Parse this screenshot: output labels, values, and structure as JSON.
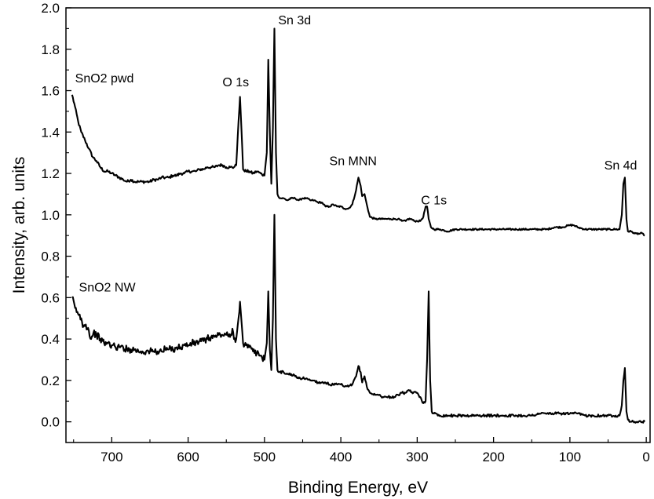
{
  "chart_data": {
    "type": "line",
    "title": "",
    "xlabel": "Binding Energy, eV",
    "ylabel": "Intensity, arb. units",
    "xlim": [
      760,
      -5
    ],
    "x_reversed": true,
    "ylim": [
      -0.1,
      2.0
    ],
    "xticks": [
      700,
      600,
      500,
      400,
      300,
      200,
      100,
      0
    ],
    "xtick_labels": [
      "700",
      "600",
      "500",
      "400",
      "300",
      "200",
      "100",
      "0"
    ],
    "yticks": [
      0.0,
      0.2,
      0.4,
      0.6,
      0.8,
      1.0,
      1.2,
      1.4,
      1.6,
      1.8,
      2.0
    ],
    "ytick_labels": [
      "0.0",
      "0.2",
      "0.4",
      "0.6",
      "0.8",
      "1.0",
      "1.2",
      "1.4",
      "1.6",
      "1.8",
      "2.0"
    ],
    "grid": false,
    "line_color": "#000000",
    "series": [
      {
        "name": "SnO2 pwd",
        "points": [
          [
            752,
            1.58
          ],
          [
            748,
            1.52
          ],
          [
            744,
            1.45
          ],
          [
            740,
            1.4
          ],
          [
            735,
            1.36
          ],
          [
            730,
            1.32
          ],
          [
            725,
            1.28
          ],
          [
            720,
            1.26
          ],
          [
            715,
            1.23
          ],
          [
            710,
            1.21
          ],
          [
            705,
            1.21
          ],
          [
            700,
            1.2
          ],
          [
            695,
            1.19
          ],
          [
            690,
            1.18
          ],
          [
            685,
            1.17
          ],
          [
            680,
            1.16
          ],
          [
            675,
            1.17
          ],
          [
            670,
            1.16
          ],
          [
            665,
            1.16
          ],
          [
            660,
            1.16
          ],
          [
            655,
            1.16
          ],
          [
            650,
            1.16
          ],
          [
            645,
            1.17
          ],
          [
            640,
            1.17
          ],
          [
            635,
            1.18
          ],
          [
            630,
            1.18
          ],
          [
            625,
            1.18
          ],
          [
            620,
            1.19
          ],
          [
            615,
            1.19
          ],
          [
            610,
            1.2
          ],
          [
            605,
            1.2
          ],
          [
            600,
            1.21
          ],
          [
            595,
            1.21
          ],
          [
            590,
            1.21
          ],
          [
            585,
            1.22
          ],
          [
            580,
            1.22
          ],
          [
            575,
            1.23
          ],
          [
            570,
            1.23
          ],
          [
            565,
            1.23
          ],
          [
            560,
            1.24
          ],
          [
            555,
            1.24
          ],
          [
            550,
            1.23
          ],
          [
            545,
            1.23
          ],
          [
            540,
            1.23
          ],
          [
            537,
            1.24
          ],
          [
            534,
            1.45
          ],
          [
            532,
            1.57
          ],
          [
            530,
            1.4
          ],
          [
            528,
            1.22
          ],
          [
            524,
            1.21
          ],
          [
            520,
            1.21
          ],
          [
            515,
            1.2
          ],
          [
            510,
            1.21
          ],
          [
            505,
            1.2
          ],
          [
            500,
            1.19
          ],
          [
            497,
            1.3
          ],
          [
            495,
            1.75
          ],
          [
            493,
            1.4
          ],
          [
            491,
            1.15
          ],
          [
            489,
            1.42
          ],
          [
            487,
            1.9
          ],
          [
            485,
            1.3
          ],
          [
            483,
            1.1
          ],
          [
            480,
            1.08
          ],
          [
            475,
            1.08
          ],
          [
            470,
            1.07
          ],
          [
            465,
            1.08
          ],
          [
            460,
            1.08
          ],
          [
            455,
            1.07
          ],
          [
            450,
            1.08
          ],
          [
            445,
            1.08
          ],
          [
            440,
            1.07
          ],
          [
            435,
            1.07
          ],
          [
            430,
            1.06
          ],
          [
            425,
            1.06
          ],
          [
            420,
            1.04
          ],
          [
            415,
            1.04
          ],
          [
            410,
            1.05
          ],
          [
            405,
            1.04
          ],
          [
            400,
            1.04
          ],
          [
            395,
            1.03
          ],
          [
            390,
            1.03
          ],
          [
            385,
            1.05
          ],
          [
            380,
            1.12
          ],
          [
            377,
            1.18
          ],
          [
            374,
            1.14
          ],
          [
            372,
            1.09
          ],
          [
            369,
            1.1
          ],
          [
            366,
            1.05
          ],
          [
            362,
            0.99
          ],
          [
            355,
            0.98
          ],
          [
            350,
            0.98
          ],
          [
            345,
            0.98
          ],
          [
            340,
            0.98
          ],
          [
            335,
            0.98
          ],
          [
            330,
            0.98
          ],
          [
            325,
            0.98
          ],
          [
            320,
            0.97
          ],
          [
            315,
            0.97
          ],
          [
            312,
            0.98
          ],
          [
            308,
            0.98
          ],
          [
            304,
            0.97
          ],
          [
            300,
            0.97
          ],
          [
            296,
            0.97
          ],
          [
            292,
            0.99
          ],
          [
            289,
            1.04
          ],
          [
            287,
            1.04
          ],
          [
            285,
            0.98
          ],
          [
            282,
            0.94
          ],
          [
            278,
            0.93
          ],
          [
            270,
            0.93
          ],
          [
            260,
            0.92
          ],
          [
            250,
            0.93
          ],
          [
            240,
            0.93
          ],
          [
            230,
            0.93
          ],
          [
            220,
            0.93
          ],
          [
            210,
            0.93
          ],
          [
            200,
            0.93
          ],
          [
            190,
            0.93
          ],
          [
            180,
            0.93
          ],
          [
            170,
            0.93
          ],
          [
            160,
            0.93
          ],
          [
            150,
            0.93
          ],
          [
            140,
            0.93
          ],
          [
            130,
            0.93
          ],
          [
            120,
            0.94
          ],
          [
            110,
            0.94
          ],
          [
            100,
            0.95
          ],
          [
            95,
            0.95
          ],
          [
            90,
            0.94
          ],
          [
            80,
            0.93
          ],
          [
            70,
            0.93
          ],
          [
            60,
            0.93
          ],
          [
            50,
            0.93
          ],
          [
            40,
            0.93
          ],
          [
            35,
            0.93
          ],
          [
            32,
            1.0
          ],
          [
            30,
            1.15
          ],
          [
            28,
            1.18
          ],
          [
            26,
            0.98
          ],
          [
            24,
            0.92
          ],
          [
            20,
            0.92
          ],
          [
            15,
            0.91
          ],
          [
            10,
            0.91
          ],
          [
            5,
            0.91
          ],
          [
            2,
            0.9
          ]
        ]
      },
      {
        "name": "SnO2 NW",
        "points": [
          [
            752,
            0.6
          ],
          [
            748,
            0.55
          ],
          [
            744,
            0.52
          ],
          [
            740,
            0.5
          ],
          [
            737,
            0.46
          ],
          [
            734,
            0.47
          ],
          [
            730,
            0.44
          ],
          [
            727,
            0.4
          ],
          [
            724,
            0.43
          ],
          [
            720,
            0.42
          ],
          [
            715,
            0.4
          ],
          [
            710,
            0.38
          ],
          [
            705,
            0.38
          ],
          [
            700,
            0.37
          ],
          [
            695,
            0.36
          ],
          [
            690,
            0.36
          ],
          [
            685,
            0.36
          ],
          [
            680,
            0.35
          ],
          [
            675,
            0.35
          ],
          [
            670,
            0.35
          ],
          [
            665,
            0.34
          ],
          [
            660,
            0.34
          ],
          [
            655,
            0.34
          ],
          [
            650,
            0.34
          ],
          [
            645,
            0.34
          ],
          [
            640,
            0.34
          ],
          [
            635,
            0.34
          ],
          [
            630,
            0.35
          ],
          [
            625,
            0.35
          ],
          [
            620,
            0.35
          ],
          [
            615,
            0.36
          ],
          [
            610,
            0.36
          ],
          [
            605,
            0.37
          ],
          [
            600,
            0.37
          ],
          [
            595,
            0.38
          ],
          [
            590,
            0.38
          ],
          [
            585,
            0.39
          ],
          [
            580,
            0.39
          ],
          [
            575,
            0.4
          ],
          [
            570,
            0.41
          ],
          [
            565,
            0.41
          ],
          [
            560,
            0.42
          ],
          [
            555,
            0.42
          ],
          [
            550,
            0.42
          ],
          [
            545,
            0.41
          ],
          [
            542,
            0.45
          ],
          [
            540,
            0.4
          ],
          [
            537,
            0.4
          ],
          [
            534,
            0.5
          ],
          [
            532,
            0.58
          ],
          [
            530,
            0.48
          ],
          [
            528,
            0.38
          ],
          [
            524,
            0.37
          ],
          [
            520,
            0.36
          ],
          [
            515,
            0.34
          ],
          [
            510,
            0.33
          ],
          [
            505,
            0.32
          ],
          [
            500,
            0.3
          ],
          [
            497,
            0.38
          ],
          [
            495,
            0.63
          ],
          [
            493,
            0.35
          ],
          [
            491,
            0.25
          ],
          [
            489,
            0.5
          ],
          [
            487,
            1.0
          ],
          [
            485,
            0.4
          ],
          [
            483,
            0.25
          ],
          [
            480,
            0.24
          ],
          [
            475,
            0.24
          ],
          [
            470,
            0.23
          ],
          [
            465,
            0.23
          ],
          [
            460,
            0.22
          ],
          [
            455,
            0.21
          ],
          [
            450,
            0.21
          ],
          [
            445,
            0.21
          ],
          [
            440,
            0.2
          ],
          [
            435,
            0.2
          ],
          [
            430,
            0.19
          ],
          [
            425,
            0.19
          ],
          [
            420,
            0.19
          ],
          [
            415,
            0.18
          ],
          [
            410,
            0.18
          ],
          [
            405,
            0.18
          ],
          [
            400,
            0.18
          ],
          [
            395,
            0.17
          ],
          [
            390,
            0.17
          ],
          [
            385,
            0.18
          ],
          [
            380,
            0.22
          ],
          [
            377,
            0.27
          ],
          [
            374,
            0.24
          ],
          [
            372,
            0.19
          ],
          [
            369,
            0.22
          ],
          [
            366,
            0.17
          ],
          [
            362,
            0.14
          ],
          [
            355,
            0.13
          ],
          [
            350,
            0.13
          ],
          [
            345,
            0.12
          ],
          [
            340,
            0.12
          ],
          [
            335,
            0.12
          ],
          [
            330,
            0.12
          ],
          [
            325,
            0.13
          ],
          [
            320,
            0.14
          ],
          [
            315,
            0.14
          ],
          [
            310,
            0.15
          ],
          [
            305,
            0.14
          ],
          [
            300,
            0.14
          ],
          [
            296,
            0.12
          ],
          [
            292,
            0.09
          ],
          [
            289,
            0.1
          ],
          [
            287,
            0.3
          ],
          [
            285,
            0.63
          ],
          [
            283,
            0.2
          ],
          [
            281,
            0.05
          ],
          [
            278,
            0.04
          ],
          [
            270,
            0.03
          ],
          [
            260,
            0.03
          ],
          [
            250,
            0.03
          ],
          [
            240,
            0.03
          ],
          [
            230,
            0.03
          ],
          [
            220,
            0.03
          ],
          [
            210,
            0.03
          ],
          [
            200,
            0.03
          ],
          [
            190,
            0.03
          ],
          [
            180,
            0.03
          ],
          [
            170,
            0.03
          ],
          [
            160,
            0.03
          ],
          [
            150,
            0.03
          ],
          [
            140,
            0.04
          ],
          [
            130,
            0.04
          ],
          [
            120,
            0.04
          ],
          [
            110,
            0.04
          ],
          [
            100,
            0.04
          ],
          [
            95,
            0.04
          ],
          [
            90,
            0.04
          ],
          [
            80,
            0.03
          ],
          [
            70,
            0.03
          ],
          [
            60,
            0.03
          ],
          [
            50,
            0.03
          ],
          [
            40,
            0.03
          ],
          [
            35,
            0.03
          ],
          [
            32,
            0.08
          ],
          [
            30,
            0.2
          ],
          [
            28,
            0.26
          ],
          [
            26,
            0.05
          ],
          [
            24,
            0.01
          ],
          [
            20,
            0.0
          ],
          [
            15,
            0.0
          ],
          [
            10,
            0.0
          ],
          [
            5,
            0.0
          ],
          [
            2,
            0.0
          ]
        ]
      }
    ],
    "annotations": [
      {
        "text": "SnO2 pwd",
        "x": 748,
        "y": 1.64
      },
      {
        "text": "O 1s",
        "x": 555,
        "y": 1.62
      },
      {
        "text": "Sn 3d",
        "x": 482,
        "y": 1.92
      },
      {
        "text": "Sn MNN",
        "x": 415,
        "y": 1.24
      },
      {
        "text": "C 1s",
        "x": 295,
        "y": 1.05
      },
      {
        "text": "Sn 4d",
        "x": 55,
        "y": 1.22
      },
      {
        "text": "SnO2 NW",
        "x": 743,
        "y": 0.63
      }
    ]
  }
}
